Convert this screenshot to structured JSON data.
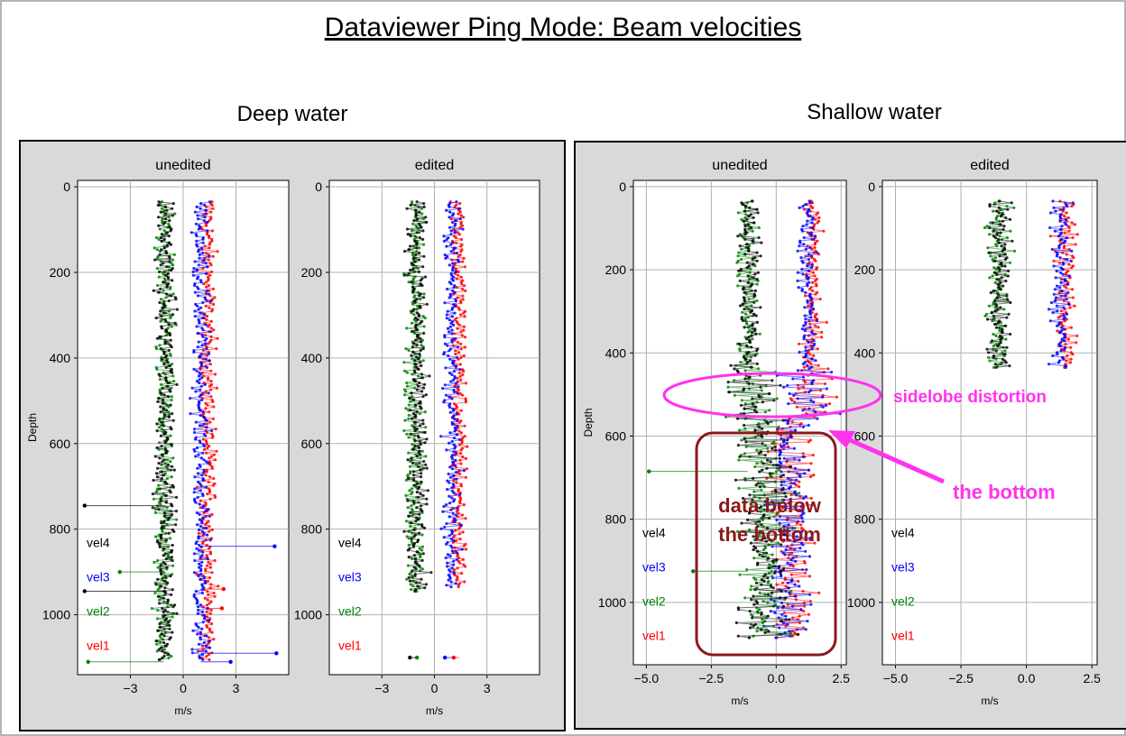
{
  "title": "Dataviewer Ping Mode: Beam velocities",
  "colors": {
    "vel1": "#ff0000",
    "vel2": "#008000",
    "vel3": "#0000ff",
    "vel4": "#000000",
    "panel_bg": "#d9d9d9",
    "grid": "#b0b0b0",
    "annotation_magenta": "#ff33ee",
    "annotation_darkred": "#8b1a1a"
  },
  "chart_data": [
    {
      "group": "Deep water",
      "panels": [
        {
          "type": "scatter",
          "title": "unedited",
          "xlabel": "m/s",
          "ylabel": "Depth",
          "xlim": [
            -6,
            6
          ],
          "ylim": [
            1140,
            -15
          ],
          "xticks": [
            -3,
            0,
            3
          ],
          "yticks": [
            0,
            200,
            400,
            600,
            800,
            1000
          ],
          "grid": true,
          "legend": [
            "vel4",
            "vel3",
            "vel2",
            "vel1"
          ],
          "series": [
            {
              "name": "vel4",
              "center": -1.0,
              "spread": 0.6,
              "depth_range": [
                35,
                1105
              ]
            },
            {
              "name": "vel2",
              "center": -1.1,
              "spread": 0.6,
              "depth_range": [
                35,
                1105
              ]
            },
            {
              "name": "vel3",
              "center": 1.0,
              "spread": 0.5,
              "depth_range": [
                35,
                1105
              ]
            },
            {
              "name": "vel1",
              "center": 1.4,
              "spread": 0.5,
              "depth_range": [
                35,
                1105
              ]
            }
          ],
          "outliers": [
            {
              "series": "vel3",
              "depth": 840,
              "x": 5.2
            },
            {
              "series": "vel3",
              "depth": 1090,
              "x": 5.3
            },
            {
              "series": "vel3",
              "depth": 1110,
              "x": 2.7
            },
            {
              "series": "vel2",
              "depth": 900,
              "x": -3.6
            },
            {
              "series": "vel2",
              "depth": 1110,
              "x": -5.4
            },
            {
              "series": "vel4",
              "depth": 745,
              "x": -5.6
            },
            {
              "series": "vel4",
              "depth": 945,
              "x": -5.6
            },
            {
              "series": "vel1",
              "depth": 940,
              "x": 2.3
            },
            {
              "series": "vel1",
              "depth": 985,
              "x": 2.2
            }
          ]
        },
        {
          "type": "scatter",
          "title": "edited",
          "xlabel": "m/s",
          "ylabel": "",
          "xlim": [
            -6,
            6
          ],
          "ylim": [
            1140,
            -15
          ],
          "xticks": [
            -3,
            0,
            3
          ],
          "yticks": [
            0,
            200,
            400,
            600,
            800,
            1000
          ],
          "grid": true,
          "legend": [
            "vel4",
            "vel3",
            "vel2",
            "vel1"
          ],
          "series": [
            {
              "name": "vel4",
              "center": -1.0,
              "spread": 0.6,
              "depth_range": [
                35,
                945
              ]
            },
            {
              "name": "vel2",
              "center": -1.1,
              "spread": 0.6,
              "depth_range": [
                35,
                945
              ]
            },
            {
              "name": "vel3",
              "center": 1.0,
              "spread": 0.5,
              "depth_range": [
                35,
                935
              ]
            },
            {
              "name": "vel1",
              "center": 1.4,
              "spread": 0.5,
              "depth_range": [
                35,
                935
              ]
            }
          ],
          "outliers": [
            {
              "series": "vel4",
              "depth": 1100,
              "x": -1.4
            },
            {
              "series": "vel2",
              "depth": 1100,
              "x": -1.0
            },
            {
              "series": "vel3",
              "depth": 1100,
              "x": 0.6
            },
            {
              "series": "vel1",
              "depth": 1100,
              "x": 1.1
            }
          ]
        }
      ]
    },
    {
      "group": "Shallow water",
      "panels": [
        {
          "type": "scatter",
          "title": "unedited",
          "xlabel": "m/s",
          "ylabel": "Depth",
          "xlim": [
            -5.5,
            2.7
          ],
          "ylim": [
            1150,
            -15
          ],
          "xticks": [
            -5.0,
            -2.5,
            0.0,
            2.5
          ],
          "yticks": [
            0,
            200,
            400,
            600,
            800,
            1000
          ],
          "grid": true,
          "legend": [
            "vel4",
            "vel3",
            "vel2",
            "vel1"
          ],
          "series": [
            {
              "name": "vel4",
              "center": -1.0,
              "spread": 0.45,
              "depth_range": [
                35,
                1085
              ]
            },
            {
              "name": "vel2",
              "center": -1.1,
              "spread": 0.45,
              "depth_range": [
                35,
                1085
              ]
            },
            {
              "name": "vel3",
              "center": 1.2,
              "spread": 0.4,
              "depth_range": [
                35,
                1085
              ]
            },
            {
              "name": "vel1",
              "center": 1.4,
              "spread": 0.4,
              "depth_range": [
                35,
                1085
              ]
            }
          ],
          "outliers": [
            {
              "series": "vel2",
              "depth": 685,
              "x": -4.9
            },
            {
              "series": "vel2",
              "depth": 925,
              "x": -3.2
            }
          ]
        },
        {
          "type": "scatter",
          "title": "edited",
          "xlabel": "m/s",
          "ylabel": "",
          "xlim": [
            -5.5,
            2.7
          ],
          "ylim": [
            1150,
            -15
          ],
          "xticks": [
            -5.0,
            -2.5,
            0.0,
            2.5
          ],
          "yticks": [
            0,
            200,
            400,
            600,
            800,
            1000
          ],
          "grid": true,
          "legend": [
            "vel4",
            "vel3",
            "vel2",
            "vel1"
          ],
          "series": [
            {
              "name": "vel4",
              "center": -1.0,
              "spread": 0.45,
              "depth_range": [
                35,
                435
              ]
            },
            {
              "name": "vel2",
              "center": -1.1,
              "spread": 0.45,
              "depth_range": [
                35,
                435
              ]
            },
            {
              "name": "vel3",
              "center": 1.3,
              "spread": 0.4,
              "depth_range": [
                35,
                435
              ]
            },
            {
              "name": "vel1",
              "center": 1.5,
              "spread": 0.4,
              "depth_range": [
                35,
                435
              ]
            }
          ],
          "outliers": []
        }
      ],
      "annotations": {
        "sidelobe": "sidelobe distortion",
        "bottom": "the bottom",
        "below_line1": "data below",
        "below_line2": "the bottom"
      }
    }
  ]
}
